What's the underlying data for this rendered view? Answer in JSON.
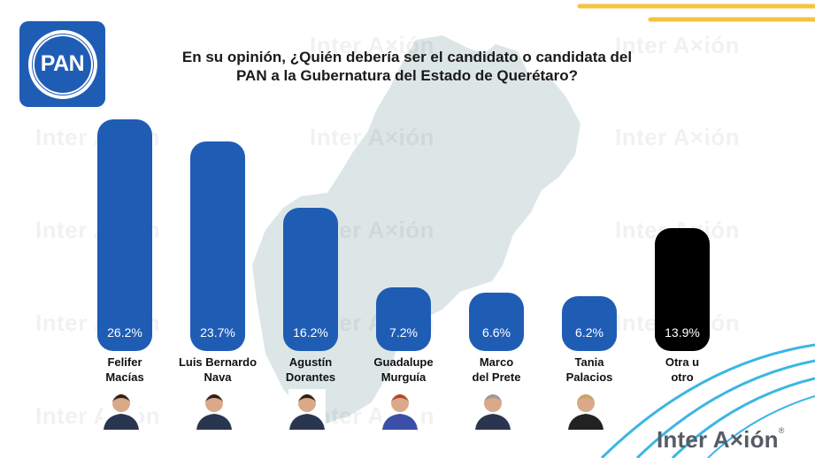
{
  "header": {
    "title_line1": "En su opinión, ¿Quién debería ser el candidato o candidata del",
    "title_line2": "PAN a la Gubernatura del Estado de Querétaro?",
    "party_logo_text": "PAN",
    "brand": "Inter A×ión",
    "brand_mark": "®",
    "watermark_text": "Inter A×ión"
  },
  "colors": {
    "bar_primary": "#1f5db5",
    "bar_other": "#000000",
    "map": "#dde6e6",
    "accent_yellow": "#f5c242",
    "accent_cyan": "#3cb6e3"
  },
  "chart_data": {
    "type": "bar",
    "title": "En su opinión, ¿Quién debería ser el candidato o candidata del PAN a la Gubernatura del Estado de Querétaro?",
    "categories": [
      [
        "Felifer",
        "Macías"
      ],
      [
        "Luis Bernardo",
        "Nava"
      ],
      [
        "Agustín",
        "Dorantes"
      ],
      [
        "Guadalupe",
        "Murguía"
      ],
      [
        "Marco",
        "del Prete"
      ],
      [
        "Tania",
        "Palacios"
      ],
      [
        "Otra u",
        "otro"
      ]
    ],
    "values": [
      26.2,
      23.7,
      16.2,
      7.2,
      6.6,
      6.2,
      13.9
    ],
    "labels": [
      "26.2%",
      "23.7%",
      "16.2%",
      "7.2%",
      "6.6%",
      "6.2%",
      "13.9%"
    ],
    "bar_colors": [
      "blue",
      "blue",
      "blue",
      "blue",
      "blue",
      "blue",
      "black"
    ],
    "ylim": [
      0,
      30
    ],
    "grid": false,
    "legend": "none"
  }
}
